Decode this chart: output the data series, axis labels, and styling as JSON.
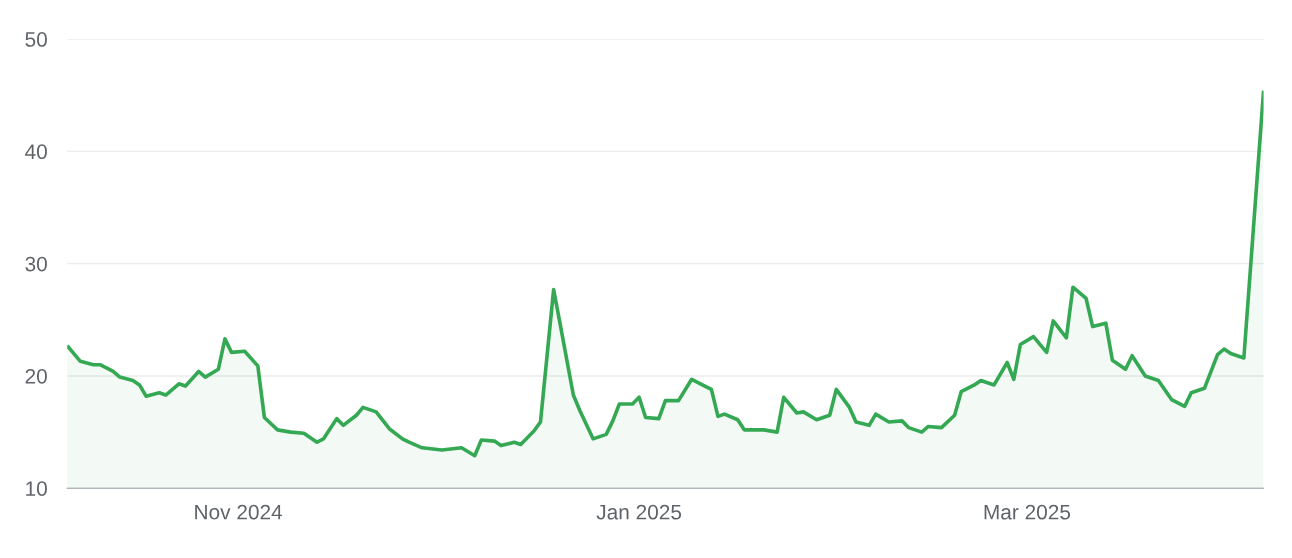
{
  "chart_data": {
    "type": "area",
    "x": [
      "2024-10-06",
      "2024-10-08",
      "2024-10-10",
      "2024-10-11",
      "2024-10-13",
      "2024-10-14",
      "2024-10-16",
      "2024-10-17",
      "2024-10-18",
      "2024-10-20",
      "2024-10-21",
      "2024-10-23",
      "2024-10-24",
      "2024-10-26",
      "2024-10-27",
      "2024-10-29",
      "2024-10-30",
      "2024-10-31",
      "2024-11-02",
      "2024-11-04",
      "2024-11-05",
      "2024-11-07",
      "2024-11-09",
      "2024-11-11",
      "2024-11-13",
      "2024-11-14",
      "2024-11-16",
      "2024-11-17",
      "2024-11-19",
      "2024-11-20",
      "2024-11-22",
      "2024-11-24",
      "2024-11-26",
      "2024-11-27",
      "2024-11-29",
      "2024-12-02",
      "2024-12-05",
      "2024-12-07",
      "2024-12-08",
      "2024-12-10",
      "2024-12-11",
      "2024-12-13",
      "2024-12-14",
      "2024-12-16",
      "2024-12-17",
      "2024-12-19",
      "2024-12-20",
      "2024-12-22",
      "2024-12-23",
      "2024-12-25",
      "2024-12-27",
      "2024-12-28",
      "2024-12-29",
      "2024-12-31",
      "2025-01-01",
      "2025-01-02",
      "2025-01-04",
      "2025-01-05",
      "2025-01-07",
      "2025-01-09",
      "2025-01-11",
      "2025-01-12",
      "2025-01-13",
      "2025-01-14",
      "2025-01-16",
      "2025-01-17",
      "2025-01-20",
      "2025-01-22",
      "2025-01-23",
      "2025-01-25",
      "2025-01-26",
      "2025-01-28",
      "2025-01-30",
      "2025-01-31",
      "2025-02-02",
      "2025-02-03",
      "2025-02-05",
      "2025-02-06",
      "2025-02-08",
      "2025-02-10",
      "2025-02-11",
      "2025-02-13",
      "2025-02-14",
      "2025-02-16",
      "2025-02-18",
      "2025-02-19",
      "2025-02-21",
      "2025-02-22",
      "2025-02-24",
      "2025-02-26",
      "2025-02-27",
      "2025-02-28",
      "2025-03-02",
      "2025-03-04",
      "2025-03-05",
      "2025-03-07",
      "2025-03-08",
      "2025-03-10",
      "2025-03-11",
      "2025-03-13",
      "2025-03-14",
      "2025-03-16",
      "2025-03-17",
      "2025-03-19",
      "2025-03-21",
      "2025-03-23",
      "2025-03-25",
      "2025-03-26",
      "2025-03-28",
      "2025-03-30",
      "2025-03-31",
      "2025-04-01",
      "2025-04-03",
      "2025-04-06"
    ],
    "series": [
      {
        "color": "#34a853",
        "values": [
          22.7,
          21.3,
          21.0,
          21.0,
          20.4,
          19.9,
          19.6,
          19.2,
          18.2,
          18.5,
          18.3,
          19.3,
          19.1,
          20.4,
          19.9,
          20.6,
          23.3,
          22.1,
          22.2,
          20.9,
          16.3,
          15.2,
          15.0,
          14.9,
          14.1,
          14.4,
          16.2,
          15.6,
          16.5,
          17.2,
          16.8,
          15.3,
          14.4,
          14.1,
          13.6,
          13.4,
          13.6,
          12.9,
          14.3,
          14.2,
          13.8,
          14.1,
          13.9,
          15.1,
          15.9,
          27.7,
          24.6,
          18.3,
          16.9,
          14.4,
          14.8,
          16.0,
          17.5,
          17.5,
          18.1,
          16.3,
          16.2,
          17.8,
          17.8,
          19.7,
          19.1,
          18.8,
          16.4,
          16.6,
          16.1,
          15.2,
          15.2,
          15.0,
          18.1,
          16.7,
          16.8,
          16.1,
          16.5,
          18.8,
          17.2,
          15.9,
          15.6,
          16.6,
          15.9,
          16.0,
          15.4,
          15.0,
          15.5,
          15.4,
          16.5,
          18.6,
          19.2,
          19.6,
          19.2,
          21.2,
          19.7,
          22.8,
          23.5,
          22.1,
          24.9,
          23.4,
          27.9,
          26.9,
          24.4,
          24.7,
          21.4,
          20.6,
          21.8,
          20.0,
          19.6,
          17.9,
          17.3,
          18.5,
          18.9,
          21.9,
          22.4,
          22.0,
          21.6,
          45.4
        ]
      }
    ],
    "xlim": [
      "2024-10-06",
      "2025-04-06"
    ],
    "xticks": [
      {
        "value": "2024-11-01",
        "label": "Nov 2024"
      },
      {
        "value": "2025-01-01",
        "label": "Jan 2025"
      },
      {
        "value": "2025-03-01",
        "label": "Mar 2025"
      }
    ],
    "ylim": [
      10,
      50
    ],
    "yticks": [
      10,
      20,
      30,
      40,
      50
    ],
    "grid": "y"
  }
}
